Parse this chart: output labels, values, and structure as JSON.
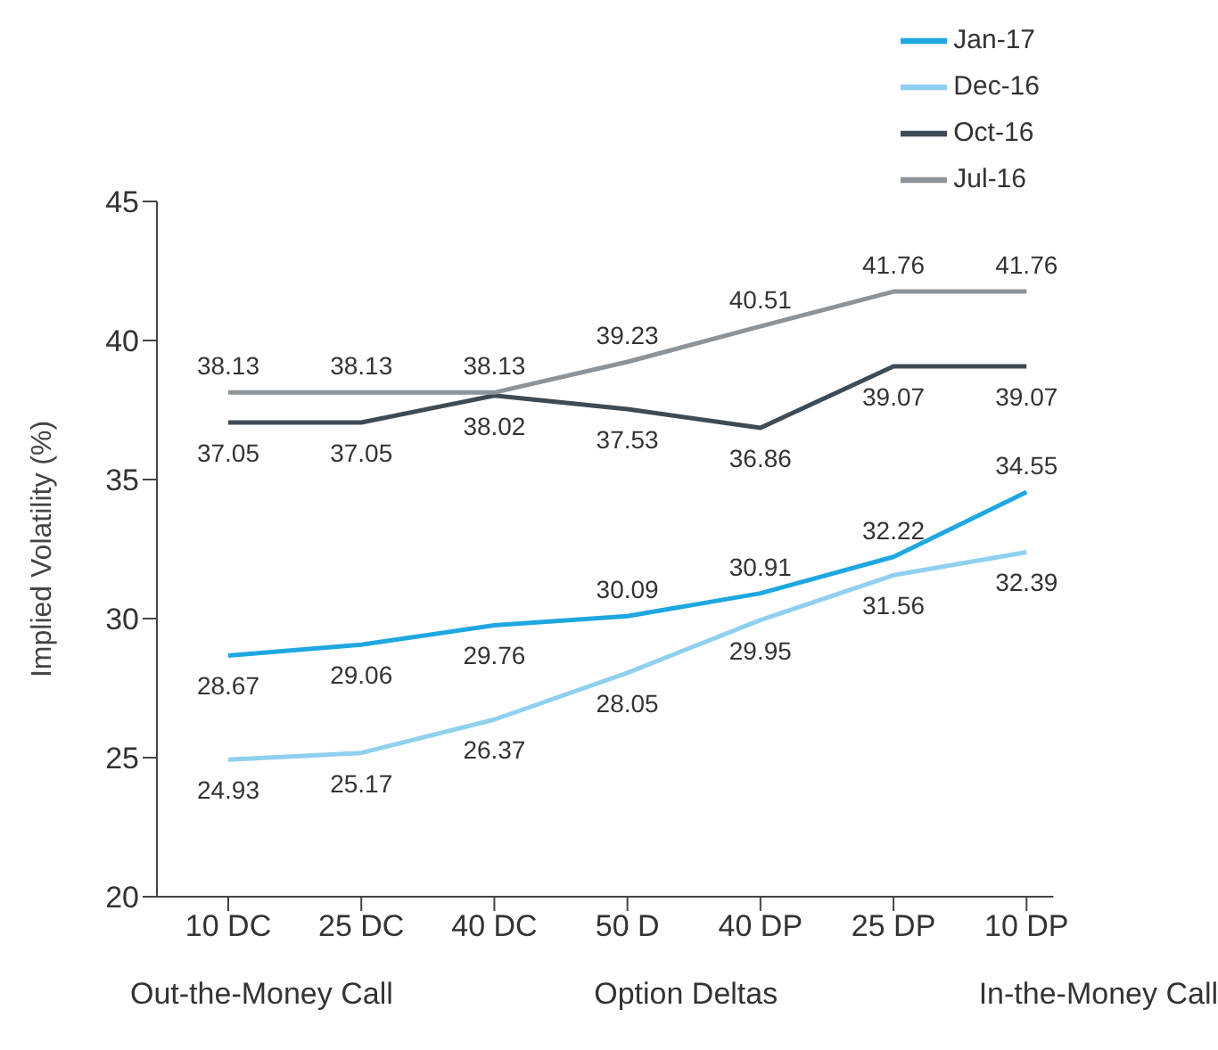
{
  "chart_data": {
    "type": "line",
    "xlabel": "Option Deltas",
    "ylabel": "Implied Volatility (%)",
    "annotations": [
      "Out-the-Money Call",
      "In-the-Money Call"
    ],
    "categories": [
      "10 DC",
      "25 DC",
      "40 DC",
      "50 D",
      "40 DP",
      "25 DP",
      "10 DP"
    ],
    "series": [
      {
        "name": "Jan-17",
        "color": "#1ea7e1",
        "values": [
          28.67,
          29.06,
          29.76,
          30.09,
          30.91,
          32.22,
          34.55
        ]
      },
      {
        "name": "Dec-16",
        "color": "#8fd0ef",
        "values": [
          24.93,
          25.17,
          26.37,
          28.05,
          29.95,
          31.56,
          32.39
        ]
      },
      {
        "name": "Oct-16",
        "color": "#3d4b57",
        "values": [
          37.05,
          37.05,
          38.02,
          37.53,
          36.86,
          39.07,
          39.07
        ]
      },
      {
        "name": "Jul-16",
        "color": "#8c9499",
        "values": [
          38.13,
          38.13,
          38.13,
          39.23,
          40.51,
          41.76,
          41.76
        ]
      }
    ],
    "ylim": [
      20,
      45
    ],
    "yticks": [
      20,
      25,
      30,
      35,
      40,
      45
    ],
    "grid": false,
    "legend": "top right",
    "marker": "none",
    "line_style": "solid",
    "data_labels": true
  }
}
